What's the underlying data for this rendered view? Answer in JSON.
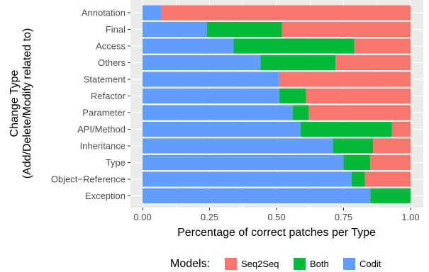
{
  "chart_data": {
    "type": "bar",
    "orientation": "horizontal",
    "stacked": true,
    "title": "",
    "xlabel": "Percentage of correct patches per Type",
    "ylabel_line1": "Change Type",
    "ylabel_line2": "(Add/Delete/Modify related to)",
    "xlim": [
      0,
      1
    ],
    "x_ticks": [
      "0.00",
      "0.25",
      "0.50",
      "0.75",
      "1.00"
    ],
    "x_tick_values": [
      0,
      0.25,
      0.5,
      0.75,
      1.0
    ],
    "grid": true,
    "categories": [
      "Annotation",
      "Final",
      "Access",
      "Others",
      "Statement",
      "Refactor",
      "Parameter",
      "API/Method",
      "Inheritance",
      "Type",
      "Object−Reference",
      "Exception"
    ],
    "series": [
      {
        "name": "Codit",
        "color": "#619CFF",
        "values": [
          0.07,
          0.24,
          0.34,
          0.44,
          0.51,
          0.51,
          0.56,
          0.59,
          0.71,
          0.75,
          0.78,
          0.85
        ]
      },
      {
        "name": "Both",
        "color": "#00BA38",
        "values": [
          0.0,
          0.28,
          0.45,
          0.28,
          0.0,
          0.1,
          0.06,
          0.34,
          0.15,
          0.1,
          0.05,
          0.15
        ]
      },
      {
        "name": "Seq2Seq",
        "color": "#F8766D",
        "values": [
          0.93,
          0.48,
          0.21,
          0.28,
          0.49,
          0.39,
          0.38,
          0.07,
          0.14,
          0.15,
          0.17,
          0.0
        ]
      }
    ],
    "legend": {
      "title": "Models:",
      "position": "bottom",
      "order": [
        "Seq2Seq",
        "Both",
        "Codit"
      ]
    },
    "background_color": "#EBEBEB",
    "grid_color": "#FFFFFF"
  }
}
